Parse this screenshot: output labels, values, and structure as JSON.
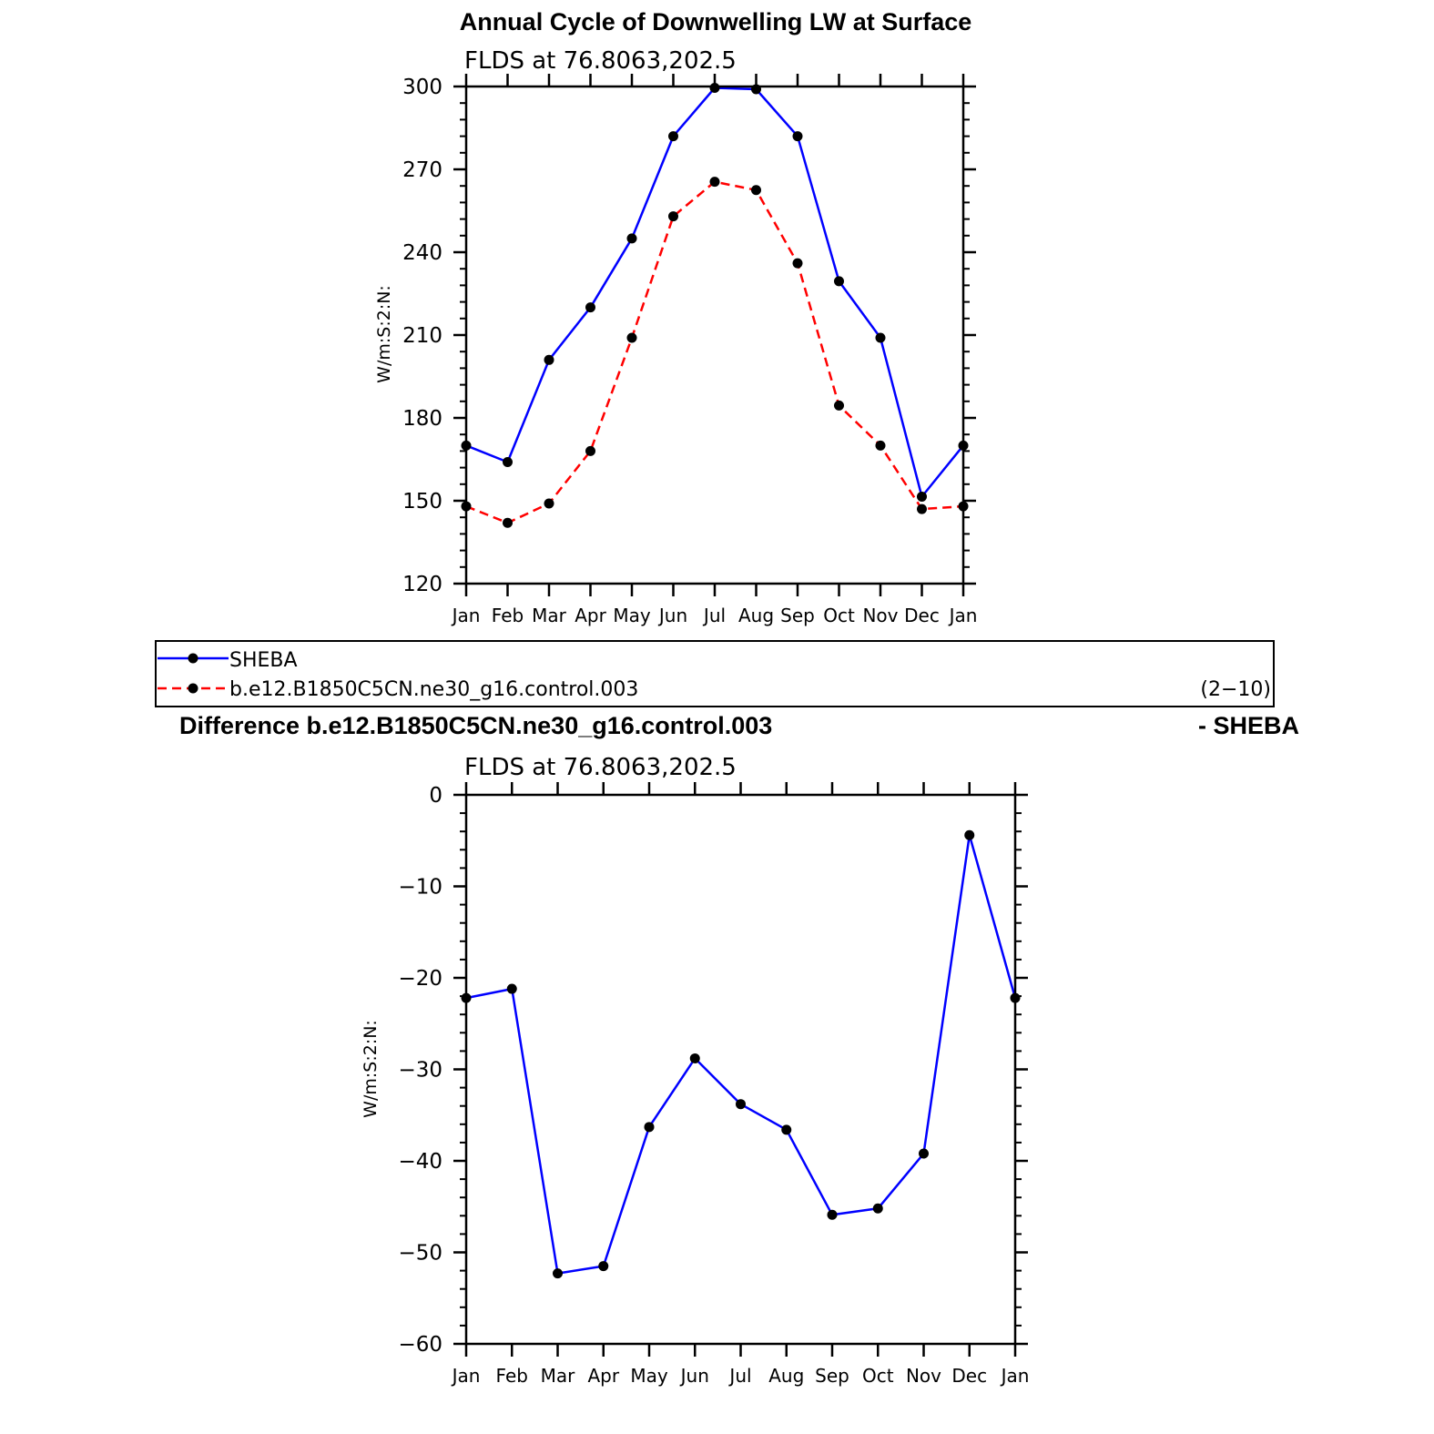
{
  "chart_data": [
    {
      "type": "line",
      "title": "Annual Cycle of Downwelling LW at Surface",
      "subtitle": "FLDS at 76.8063,202.5",
      "ylabel": "W/m:S:2:N:",
      "ylim": [
        120,
        300
      ],
      "yticks": [
        120,
        150,
        180,
        210,
        240,
        270,
        300
      ],
      "categories": [
        "Jan",
        "Feb",
        "Mar",
        "Apr",
        "May",
        "Jun",
        "Jul",
        "Aug",
        "Sep",
        "Oct",
        "Nov",
        "Dec",
        "Jan"
      ],
      "series": [
        {
          "name": "SHEBA",
          "color": "#0000ff",
          "dash": "solid",
          "values": [
            170,
            164,
            201,
            220,
            245,
            282,
            299.5,
            299,
            282,
            229.5,
            209,
            151.5,
            170
          ]
        },
        {
          "name": "b.e12.B1850C5CN.ne30_g16.control.003",
          "color": "#ff0000",
          "dash": "dashed",
          "values": [
            148,
            142,
            149,
            168,
            209,
            253,
            265.5,
            262.5,
            236,
            184.5,
            170,
            147,
            148
          ]
        }
      ],
      "legend": {
        "placement": "below",
        "note": "(2−10)"
      }
    },
    {
      "type": "line",
      "title": "Difference b.e12.B1850C5CN.ne30_g16.control.003",
      "title_right": "- SHEBA",
      "subtitle": "FLDS at 76.8063,202.5",
      "ylabel": "W/m:S:2:N:",
      "ylim": [
        -60,
        0
      ],
      "yticks": [
        -60,
        -50,
        -40,
        -30,
        -20,
        -10,
        0
      ],
      "ytick_labels": [
        "−60",
        "−50",
        "−40",
        "−30",
        "−20",
        "−10",
        "0"
      ],
      "categories": [
        "Jan",
        "Feb",
        "Mar",
        "Apr",
        "May",
        "Jun",
        "Jul",
        "Aug",
        "Sep",
        "Oct",
        "Nov",
        "Dec",
        "Jan"
      ],
      "series": [
        {
          "color": "#0000ff",
          "dash": "solid",
          "values": [
            -22.2,
            -21.2,
            -52.3,
            -51.5,
            -36.3,
            -28.8,
            -33.8,
            -36.6,
            -45.9,
            -45.2,
            -39.2,
            -4.4,
            -22.2
          ]
        }
      ]
    }
  ]
}
